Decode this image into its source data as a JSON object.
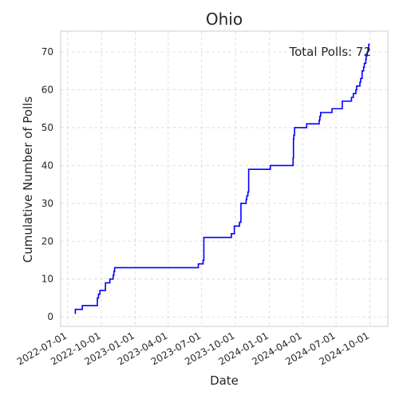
{
  "chart_data": {
    "type": "line",
    "title": "Ohio",
    "xlabel": "Date",
    "ylabel": "Cumulative Number of Polls",
    "annotation": "Total Polls: 72",
    "grid": true,
    "line_style": "step-post",
    "line_color": "#0000ff",
    "xlim": [
      "2022-06-12",
      "2024-11-19"
    ],
    "ylim": [
      -2.5,
      75.5
    ],
    "x_ticks": [
      "2022-07-01",
      "2022-10-01",
      "2023-01-01",
      "2023-04-01",
      "2023-07-01",
      "2023-10-01",
      "2024-01-01",
      "2024-04-01",
      "2024-07-01",
      "2024-10-01"
    ],
    "y_ticks": [
      0,
      10,
      20,
      30,
      40,
      50,
      60,
      70
    ],
    "series": [
      {
        "x": [
          "2022-07-20",
          "2022-07-22",
          "2022-08-10",
          "2022-08-25",
          "2022-08-29",
          "2022-09-20",
          "2022-09-23",
          "2022-09-27",
          "2022-10-05",
          "2022-10-12",
          "2022-10-24",
          "2022-10-28",
          "2022-11-02",
          "2022-11-04",
          "2022-11-06",
          "2023-06-20",
          "2023-06-22",
          "2023-07-05",
          "2023-07-07",
          "2023-09-18",
          "2023-09-20",
          "2023-09-28",
          "2023-10-02",
          "2023-10-12",
          "2023-10-16",
          "2023-10-30",
          "2023-11-01",
          "2023-11-04",
          "2023-11-06",
          "2024-01-02",
          "2024-01-04",
          "2024-03-05",
          "2024-03-06",
          "2024-03-07",
          "2024-03-08",
          "2024-03-10",
          "2024-04-10",
          "2024-04-12",
          "2024-05-15",
          "2024-05-16",
          "2024-05-18",
          "2024-05-20",
          "2024-06-18",
          "2024-06-20",
          "2024-07-16",
          "2024-07-18",
          "2024-08-08",
          "2024-08-12",
          "2024-08-15",
          "2024-08-17",
          "2024-08-24",
          "2024-08-26",
          "2024-08-30",
          "2024-09-01",
          "2024-09-04",
          "2024-09-06",
          "2024-09-10",
          "2024-09-14",
          "2024-09-16",
          "2024-09-17",
          "2024-09-18",
          "2024-09-20",
          "2024-09-21",
          "2024-09-22",
          "2024-09-24",
          "2024-09-25",
          "2024-09-26",
          "2024-09-27",
          "2024-09-28",
          "2024-09-29",
          "2024-09-30",
          "2024-10-01"
        ],
        "values": [
          1,
          2,
          3,
          3,
          3,
          5,
          6,
          7,
          7,
          9,
          10,
          10,
          11,
          12,
          13,
          13,
          14,
          15,
          21,
          21,
          22,
          24,
          24,
          25,
          30,
          31,
          32,
          33,
          39,
          39,
          40,
          40,
          42,
          47,
          48,
          50,
          50,
          51,
          51,
          52,
          53,
          54,
          54,
          55,
          55,
          57,
          57,
          58,
          58,
          59,
          60,
          61,
          61,
          61,
          62,
          63,
          65,
          66,
          67,
          67,
          67,
          68,
          69,
          69,
          70,
          70,
          71,
          71,
          72,
          72,
          72,
          72
        ]
      }
    ]
  }
}
